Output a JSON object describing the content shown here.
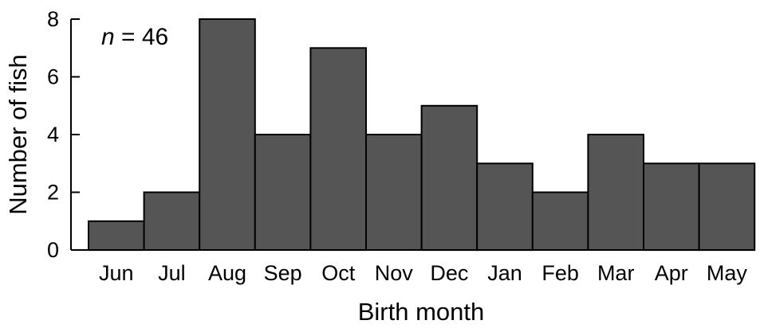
{
  "chart_data": {
    "type": "bar",
    "categories": [
      "Jun",
      "Jul",
      "Aug",
      "Sep",
      "Oct",
      "Nov",
      "Dec",
      "Jan",
      "Feb",
      "Mar",
      "Apr",
      "May"
    ],
    "values": [
      1,
      2,
      8,
      4,
      7,
      4,
      5,
      3,
      2,
      4,
      3,
      3
    ],
    "xlabel": "Birth month",
    "ylabel": "Number of fish",
    "ylim": [
      0,
      8
    ],
    "yticks": [
      0,
      2,
      4,
      6,
      8
    ],
    "annotation": {
      "italic": "n",
      "rest": " = 46"
    },
    "bar_color": "#555555",
    "grid": false
  }
}
